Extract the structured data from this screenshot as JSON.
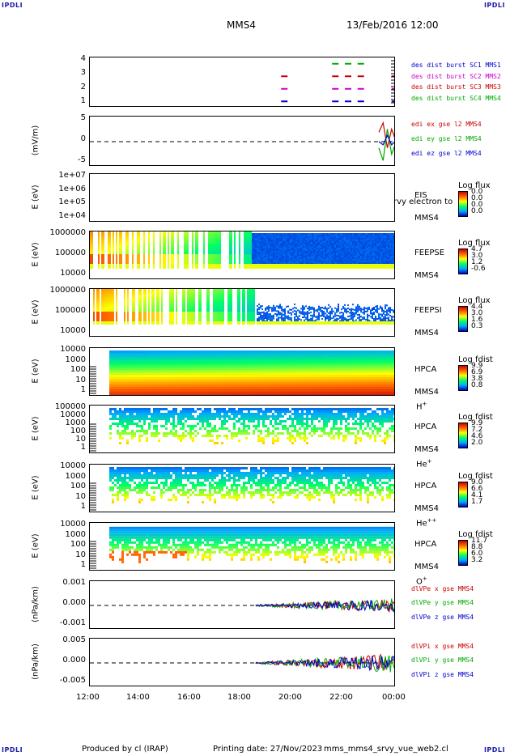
{
  "corners": {
    "tl": "IPDLI",
    "tr": "IPDLI",
    "bl": "IPDLI",
    "br": "IPDLI"
  },
  "header": {
    "mission": "MMS4",
    "datetime": "13/Feb/2016 12:00"
  },
  "footer": {
    "produced": "Produced by cl (IRAP)",
    "printing": "Printing date: 27/Nov/2023",
    "file": "mms_mms4_srvy_vue_web2.cl"
  },
  "xaxis": {
    "ticks": [
      "12:00",
      "14:00",
      "16:00",
      "18:00",
      "20:00",
      "22:00",
      "00:00"
    ]
  },
  "panels": [
    {
      "id": "dist",
      "ylabel": "",
      "yticks": [
        "4",
        "3",
        "2",
        "1"
      ],
      "legend": [
        {
          "text": "des dist burst SC1 MMS1",
          "color": "#0000cc"
        },
        {
          "text": "des dist burst SC2 MMS2",
          "color": "#cc00cc"
        },
        {
          "text": "des dist burst SC3 MMS3",
          "color": "#cc0000"
        },
        {
          "text": "des dist burst SC4 MMS4",
          "color": "#00aa00"
        }
      ]
    },
    {
      "id": "edi",
      "ylabel": "(mV/m)",
      "yticks": [
        "5",
        "0",
        "-5"
      ],
      "legend": [
        {
          "text": "edi ex gse l2 MMS4",
          "color": "#cc0000"
        },
        {
          "text": "edi ey gse l2 MMS4",
          "color": "#00aa00"
        },
        {
          "text": "edi ez gse l2 MMS4",
          "color": "#0000cc"
        }
      ]
    },
    {
      "id": "eis",
      "ylabel": "E (eV)",
      "yticks": [
        "1e+07",
        "1e+06",
        "1e+05",
        "1e+04"
      ],
      "instrument": [
        "EIS",
        "MMS4"
      ],
      "overlay": "rvy electron to",
      "cb_title": "Log flux",
      "cb_vals": [
        "0.0",
        "0.0",
        "0.0",
        "0.0"
      ]
    },
    {
      "id": "feepse",
      "ylabel": "E (eV)",
      "yticks": [
        "1000000",
        "100000",
        "10000"
      ],
      "instrument": [
        "FEEPSE",
        "MMS4"
      ],
      "cb_title": "Log flux",
      "cb_vals": [
        "4.7",
        "3.0",
        "1.2",
        "-0.6"
      ]
    },
    {
      "id": "feepsi",
      "ylabel": "E (eV)",
      "yticks": [
        "1000000",
        "100000",
        "10000"
      ],
      "instrument": [
        "FEEPSI",
        "MMS4"
      ],
      "cb_title": "Log flux",
      "cb_vals": [
        "4.4",
        "3.0",
        "1.6",
        "0.3"
      ]
    },
    {
      "id": "hpcah",
      "ylabel": "E (eV)",
      "yticks": [
        "10000",
        "1000",
        "100",
        "10",
        "1"
      ],
      "instrument": [
        "HPCA",
        "MMS4"
      ],
      "species": "H+",
      "cb_title": "Log fdist",
      "cb_vals": [
        "9.9",
        "6.9",
        "3.8",
        "0.8"
      ]
    },
    {
      "id": "hpcahe",
      "ylabel": "E (eV)",
      "yticks": [
        "100000",
        "10000",
        "1000",
        "100",
        "10",
        "1"
      ],
      "instrument": [
        "HPCA",
        "MMS4"
      ],
      "species": "He+",
      "cb_title": "Log fdist",
      "cb_vals": [
        "9.9",
        "7.2",
        "4.6",
        "2.0"
      ]
    },
    {
      "id": "hpcahepp",
      "ylabel": "E (eV)",
      "yticks": [
        "10000",
        "1000",
        "100",
        "10",
        "1"
      ],
      "instrument": [
        "HPCA",
        "MMS4"
      ],
      "species": "He++",
      "cb_title": "Log fdist",
      "cb_vals": [
        "9.0",
        "6.6",
        "4.1",
        "1.7"
      ]
    },
    {
      "id": "hpcao",
      "ylabel": "E (eV)",
      "yticks": [
        "10000",
        "1000",
        "100",
        "10",
        "1"
      ],
      "instrument": [
        "HPCA",
        "MMS4"
      ],
      "species": "O+",
      "cb_title": "Log fdist",
      "cb_vals": [
        "11.7",
        "8.8",
        "6.0",
        "3.2"
      ]
    },
    {
      "id": "dlvpe",
      "ylabel": "(nPa/km)",
      "yticks": [
        "0.001",
        "0.000",
        "-0.001"
      ],
      "legend": [
        {
          "text": "dlVPe x gse MMS4",
          "color": "#cc0000"
        },
        {
          "text": "dlVPe y gse MMS4",
          "color": "#00aa00"
        },
        {
          "text": "dlVPe z gse MMS4",
          "color": "#0000cc"
        }
      ]
    },
    {
      "id": "dlvpi",
      "ylabel": "(nPa/km)",
      "yticks": [
        "0.005",
        "0.000",
        "-0.005"
      ],
      "legend": [
        {
          "text": "dlVPi x gse MMS4",
          "color": "#cc0000"
        },
        {
          "text": "dlVPi y gse MMS4",
          "color": "#00aa00"
        },
        {
          "text": "dlVPi z gse MMS4",
          "color": "#0000cc"
        }
      ]
    }
  ],
  "chart_data": [
    {
      "type": "scatter",
      "title": "des dist burst",
      "ylim": [
        0.5,
        4.5
      ],
      "x_range": [
        "12:00",
        "00:00"
      ],
      "series": [
        {
          "name": "des dist burst SC1 MMS1",
          "color": "#0000cc",
          "y": 1,
          "x": [
            "19:30",
            "21:30",
            "22:00",
            "22:30",
            "23:50"
          ]
        },
        {
          "name": "des dist burst SC2 MMS2",
          "color": "#cc00cc",
          "y": 2,
          "x": [
            "19:30",
            "21:30",
            "22:00",
            "22:30",
            "23:50"
          ]
        },
        {
          "name": "des dist burst SC3 MMS3",
          "color": "#cc0000",
          "y": 3,
          "x": [
            "19:30",
            "21:30",
            "22:00",
            "22:30",
            "23:50"
          ]
        },
        {
          "name": "des dist burst SC4 MMS4",
          "color": "#00aa00",
          "y": 4,
          "x": [
            "21:30",
            "22:00",
            "22:30"
          ]
        }
      ]
    },
    {
      "type": "line",
      "ylabel": "(mV/m)",
      "ylim": [
        -8,
        8
      ],
      "x": [
        "23:20",
        "23:30",
        "23:40",
        "23:50",
        "00:00"
      ],
      "series": [
        {
          "name": "edi ex gse l2 MMS4",
          "color": "#cc0000",
          "values": [
            3,
            6,
            -2,
            4,
            1
          ]
        },
        {
          "name": "edi ey gse l2 MMS4",
          "color": "#00aa00",
          "values": [
            -2,
            -6,
            4,
            -4,
            -1
          ]
        },
        {
          "name": "edi ez gse l2 MMS4",
          "color": "#0000cc",
          "values": [
            0,
            -1,
            2,
            -1,
            0
          ]
        }
      ]
    },
    {
      "type": "heatmap",
      "title": "EIS MMS4",
      "ylabel": "E (eV)",
      "log_y": true,
      "ylim": [
        10000.0,
        10000000.0
      ]
    },
    {
      "type": "heatmap",
      "title": "FEEPSE MMS4",
      "ylabel": "E (eV)",
      "log_y": true,
      "ylim": [
        10000.0,
        1000000.0
      ]
    },
    {
      "type": "heatmap",
      "title": "FEEPSI MMS4",
      "ylabel": "E (eV)",
      "log_y": true,
      "ylim": [
        10000.0,
        1000000.0
      ]
    },
    {
      "type": "heatmap",
      "title": "HPCA MMS4 H+",
      "ylabel": "E (eV)",
      "log_y": true,
      "ylim": [
        1,
        40000.0
      ]
    },
    {
      "type": "heatmap",
      "title": "HPCA MMS4 He+",
      "ylabel": "E (eV)",
      "log_y": true,
      "ylim": [
        1,
        100000.0
      ]
    },
    {
      "type": "heatmap",
      "title": "HPCA MMS4 He++",
      "ylabel": "E (eV)",
      "log_y": true,
      "ylim": [
        1,
        40000.0
      ]
    },
    {
      "type": "heatmap",
      "title": "HPCA MMS4 O+",
      "ylabel": "E (eV)",
      "log_y": true,
      "ylim": [
        1,
        40000.0
      ]
    },
    {
      "type": "line",
      "ylabel": "(nPa/km)",
      "ylim": [
        -0.0015,
        0.0015
      ],
      "x_range": [
        "18:30",
        "00:00"
      ]
    },
    {
      "type": "line",
      "ylabel": "(nPa/km)",
      "ylim": [
        -0.007,
        0.007
      ],
      "x_range": [
        "18:30",
        "00:00"
      ]
    }
  ]
}
